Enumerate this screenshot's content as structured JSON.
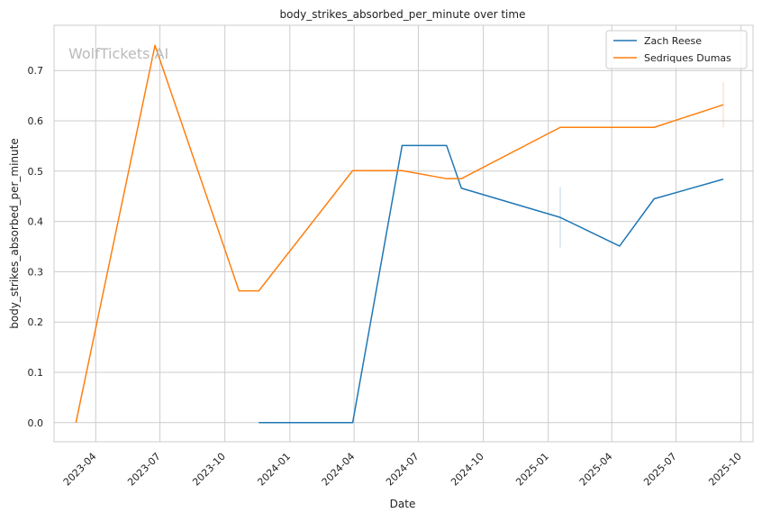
{
  "chart_data": {
    "type": "line",
    "title": "body_strikes_absorbed_per_minute over time",
    "xlabel": "Date",
    "ylabel": "body_strikes_absorbed_per_minute",
    "watermark": "WolfTickets.AI",
    "x_type": "date",
    "xlim": [
      "2023-02-01",
      "2025-10-18"
    ],
    "ylim": [
      -0.038,
      0.79
    ],
    "x_ticks": [
      "2023-04-01",
      "2023-07-01",
      "2023-10-01",
      "2024-01-01",
      "2024-04-01",
      "2024-07-01",
      "2024-10-01",
      "2025-01-01",
      "2025-04-01",
      "2025-07-01",
      "2025-10-01"
    ],
    "x_tick_labels": [
      "2023-04",
      "2023-07",
      "2023-10",
      "2024-01",
      "2024-04",
      "2024-07",
      "2024-10",
      "2025-01",
      "2025-04",
      "2025-07",
      "2025-10"
    ],
    "y_ticks": [
      0.0,
      0.1,
      0.2,
      0.3,
      0.4,
      0.5,
      0.6,
      0.7
    ],
    "y_tick_labels": [
      "0.0",
      "0.1",
      "0.2",
      "0.3",
      "0.4",
      "0.5",
      "0.6",
      "0.7"
    ],
    "grid": true,
    "legend_position": "top-right",
    "series": [
      {
        "name": "Zach Reese",
        "color": "#1f77b4",
        "points": [
          {
            "x": "2023-11-18",
            "y": 0.0
          },
          {
            "x": "2024-03-30",
            "y": 0.0
          },
          {
            "x": "2024-06-08",
            "y": 0.551
          },
          {
            "x": "2024-08-10",
            "y": 0.551
          },
          {
            "x": "2024-08-31",
            "y": 0.466
          },
          {
            "x": "2025-01-18",
            "y": 0.408
          },
          {
            "x": "2025-04-12",
            "y": 0.351
          },
          {
            "x": "2025-05-31",
            "y": 0.445
          },
          {
            "x": "2025-09-06",
            "y": 0.484
          }
        ],
        "error_bars": [
          {
            "x": "2025-01-18",
            "low": 0.348,
            "high": 0.468
          }
        ]
      },
      {
        "name": "Sedriques Dumas",
        "color": "#ff7f0e",
        "points": [
          {
            "x": "2023-03-04",
            "y": 0.0
          },
          {
            "x": "2023-06-24",
            "y": 0.75
          },
          {
            "x": "2023-10-21",
            "y": 0.262
          },
          {
            "x": "2023-11-18",
            "y": 0.262
          },
          {
            "x": "2024-03-30",
            "y": 0.501
          },
          {
            "x": "2024-06-08",
            "y": 0.501
          },
          {
            "x": "2024-08-10",
            "y": 0.485
          },
          {
            "x": "2024-08-31",
            "y": 0.485
          },
          {
            "x": "2025-01-18",
            "y": 0.587
          },
          {
            "x": "2025-05-31",
            "y": 0.587
          },
          {
            "x": "2025-09-06",
            "y": 0.632
          }
        ],
        "error_bars": [
          {
            "x": "2025-09-06",
            "low": 0.587,
            "high": 0.677
          }
        ]
      }
    ]
  }
}
